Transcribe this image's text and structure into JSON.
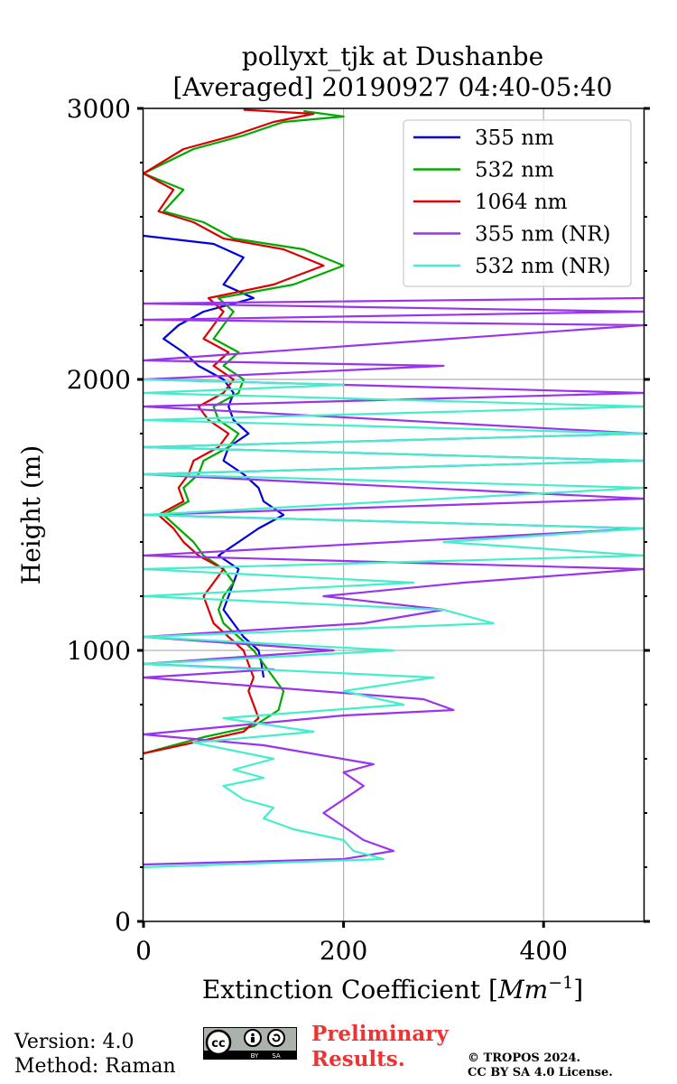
{
  "chart_data": {
    "type": "line",
    "title": "pollyxt_tjk at Dushanbe",
    "subtitle": "[Averaged] 20190927 04:40-05:40",
    "xlabel": "Extinction Coefficient [Mm⁻¹]",
    "xlabel_base": "Extinction Coefficient [",
    "xlabel_unit": "Mm",
    "xlabel_exp": "−1",
    "xlabel_close": "]",
    "ylabel": "Height (m)",
    "xlim": [
      0,
      500
    ],
    "ylim": [
      0,
      3000
    ],
    "x_ticks": [
      0,
      200,
      400
    ],
    "y_ticks": [
      0,
      1000,
      2000,
      3000
    ],
    "x_tick_labels": [
      "0",
      "200",
      "400"
    ],
    "y_tick_labels": [
      "0",
      "1000",
      "2000",
      "3000"
    ],
    "grid": true,
    "legend_position": "top-right",
    "series": [
      {
        "name": "355 nm",
        "color": "#0000dd",
        "points": [
          [
            120,
            900
          ],
          [
            118,
            950
          ],
          [
            115,
            1000
          ],
          [
            100,
            1050
          ],
          [
            90,
            1100
          ],
          [
            80,
            1150
          ],
          [
            85,
            1200
          ],
          [
            90,
            1250
          ],
          [
            95,
            1300
          ],
          [
            75,
            1350
          ],
          [
            95,
            1400
          ],
          [
            115,
            1450
          ],
          [
            140,
            1500
          ],
          [
            120,
            1550
          ],
          [
            115,
            1600
          ],
          [
            100,
            1650
          ],
          [
            80,
            1700
          ],
          [
            85,
            1750
          ],
          [
            105,
            1800
          ],
          [
            90,
            1850
          ],
          [
            85,
            1900
          ],
          [
            90,
            1950
          ],
          [
            80,
            2000
          ],
          [
            55,
            2050
          ],
          [
            40,
            2100
          ],
          [
            20,
            2150
          ],
          [
            35,
            2200
          ],
          [
            60,
            2250
          ],
          [
            110,
            2300
          ],
          [
            80,
            2350
          ],
          [
            90,
            2400
          ],
          [
            100,
            2450
          ],
          [
            70,
            2500
          ],
          [
            0,
            2530
          ]
        ]
      },
      {
        "name": "532 nm",
        "color": "#00aa00",
        "points": [
          [
            0,
            620
          ],
          [
            60,
            680
          ],
          [
            110,
            720
          ],
          [
            135,
            780
          ],
          [
            140,
            850
          ],
          [
            130,
            900
          ],
          [
            120,
            950
          ],
          [
            110,
            1000
          ],
          [
            95,
            1050
          ],
          [
            80,
            1100
          ],
          [
            75,
            1150
          ],
          [
            80,
            1200
          ],
          [
            90,
            1250
          ],
          [
            80,
            1300
          ],
          [
            60,
            1350
          ],
          [
            50,
            1400
          ],
          [
            35,
            1450
          ],
          [
            20,
            1500
          ],
          [
            45,
            1550
          ],
          [
            40,
            1600
          ],
          [
            55,
            1650
          ],
          [
            60,
            1700
          ],
          [
            85,
            1750
          ],
          [
            95,
            1800
          ],
          [
            75,
            1850
          ],
          [
            70,
            1900
          ],
          [
            95,
            1950
          ],
          [
            100,
            2000
          ],
          [
            80,
            2050
          ],
          [
            95,
            2100
          ],
          [
            70,
            2150
          ],
          [
            80,
            2200
          ],
          [
            90,
            2250
          ],
          [
            75,
            2300
          ],
          [
            150,
            2350
          ],
          [
            200,
            2420
          ],
          [
            160,
            2480
          ],
          [
            90,
            2520
          ],
          [
            60,
            2580
          ],
          [
            20,
            2620
          ],
          [
            40,
            2700
          ],
          [
            0,
            2760
          ],
          [
            50,
            2850
          ],
          [
            100,
            2900
          ],
          [
            140,
            2950
          ],
          [
            200,
            2970
          ],
          [
            160,
            2990
          ]
        ]
      },
      {
        "name": "1064 nm",
        "color": "#dd0000",
        "points": [
          [
            0,
            620
          ],
          [
            50,
            660
          ],
          [
            100,
            700
          ],
          [
            115,
            750
          ],
          [
            110,
            800
          ],
          [
            105,
            850
          ],
          [
            110,
            900
          ],
          [
            105,
            950
          ],
          [
            100,
            1000
          ],
          [
            85,
            1050
          ],
          [
            70,
            1100
          ],
          [
            65,
            1150
          ],
          [
            60,
            1200
          ],
          [
            70,
            1250
          ],
          [
            80,
            1300
          ],
          [
            55,
            1350
          ],
          [
            40,
            1400
          ],
          [
            30,
            1450
          ],
          [
            15,
            1500
          ],
          [
            40,
            1550
          ],
          [
            35,
            1600
          ],
          [
            45,
            1650
          ],
          [
            50,
            1700
          ],
          [
            75,
            1750
          ],
          [
            85,
            1800
          ],
          [
            65,
            1850
          ],
          [
            55,
            1900
          ],
          [
            80,
            1950
          ],
          [
            90,
            2000
          ],
          [
            70,
            2050
          ],
          [
            85,
            2100
          ],
          [
            60,
            2150
          ],
          [
            70,
            2200
          ],
          [
            80,
            2250
          ],
          [
            65,
            2300
          ],
          [
            130,
            2350
          ],
          [
            180,
            2420
          ],
          [
            140,
            2480
          ],
          [
            80,
            2520
          ],
          [
            50,
            2580
          ],
          [
            15,
            2620
          ],
          [
            30,
            2700
          ],
          [
            0,
            2760
          ],
          [
            40,
            2850
          ],
          [
            90,
            2900
          ],
          [
            130,
            2950
          ],
          [
            170,
            2980
          ],
          [
            100,
            2995
          ]
        ]
      },
      {
        "name": "355 nm (NR)",
        "color": "#9933ee",
        "points": [
          [
            0,
            210
          ],
          [
            200,
            230
          ],
          [
            250,
            260
          ],
          [
            220,
            300
          ],
          [
            200,
            350
          ],
          [
            180,
            400
          ],
          [
            200,
            450
          ],
          [
            220,
            500
          ],
          [
            200,
            550
          ],
          [
            230,
            580
          ],
          [
            120,
            650
          ],
          [
            0,
            690
          ],
          [
            200,
            760
          ],
          [
            310,
            780
          ],
          [
            280,
            820
          ],
          [
            0,
            900
          ],
          [
            130,
            930
          ],
          [
            0,
            950
          ],
          [
            190,
            1000
          ],
          [
            0,
            1050
          ],
          [
            220,
            1100
          ],
          [
            300,
            1150
          ],
          [
            180,
            1200
          ],
          [
            320,
            1250
          ],
          [
            500,
            1300
          ],
          [
            0,
            1350
          ],
          [
            500,
            1450
          ],
          [
            0,
            1500
          ],
          [
            500,
            1560
          ],
          [
            0,
            1650
          ],
          [
            500,
            1700
          ],
          [
            0,
            1750
          ],
          [
            500,
            1800
          ],
          [
            0,
            1900
          ],
          [
            500,
            1950
          ],
          [
            0,
            2000
          ],
          [
            300,
            2050
          ],
          [
            0,
            2070
          ],
          [
            500,
            2200
          ],
          [
            0,
            2220
          ],
          [
            500,
            2250
          ],
          [
            0,
            2280
          ],
          [
            500,
            2300
          ]
        ]
      },
      {
        "name": "532 nm (NR)",
        "color": "#44eecc",
        "points": [
          [
            0,
            200
          ],
          [
            240,
            230
          ],
          [
            210,
            260
          ],
          [
            200,
            300
          ],
          [
            150,
            340
          ],
          [
            120,
            380
          ],
          [
            130,
            420
          ],
          [
            100,
            450
          ],
          [
            80,
            500
          ],
          [
            120,
            530
          ],
          [
            90,
            560
          ],
          [
            130,
            600
          ],
          [
            50,
            660
          ],
          [
            170,
            700
          ],
          [
            80,
            750
          ],
          [
            260,
            800
          ],
          [
            200,
            850
          ],
          [
            290,
            900
          ],
          [
            0,
            950
          ],
          [
            250,
            1000
          ],
          [
            0,
            1050
          ],
          [
            350,
            1100
          ],
          [
            300,
            1150
          ],
          [
            0,
            1200
          ],
          [
            270,
            1250
          ],
          [
            0,
            1300
          ],
          [
            500,
            1350
          ],
          [
            300,
            1400
          ],
          [
            500,
            1450
          ],
          [
            0,
            1500
          ],
          [
            500,
            1600
          ],
          [
            0,
            1650
          ],
          [
            500,
            1700
          ],
          [
            0,
            1750
          ],
          [
            500,
            1800
          ],
          [
            0,
            1850
          ],
          [
            500,
            1900
          ],
          [
            0,
            1950
          ],
          [
            200,
            1980
          ],
          [
            0,
            2000
          ]
        ]
      }
    ]
  },
  "footer": {
    "version": "Version: 4.0",
    "method": "Method: Raman",
    "preliminary_1": "Preliminary",
    "preliminary_2": "Results.",
    "copyright_1": "© TROPOS 2024.",
    "copyright_2": "CC BY SA 4.0 License.",
    "cc_text": "cc",
    "by_text": "BY",
    "sa_text": "SA"
  }
}
